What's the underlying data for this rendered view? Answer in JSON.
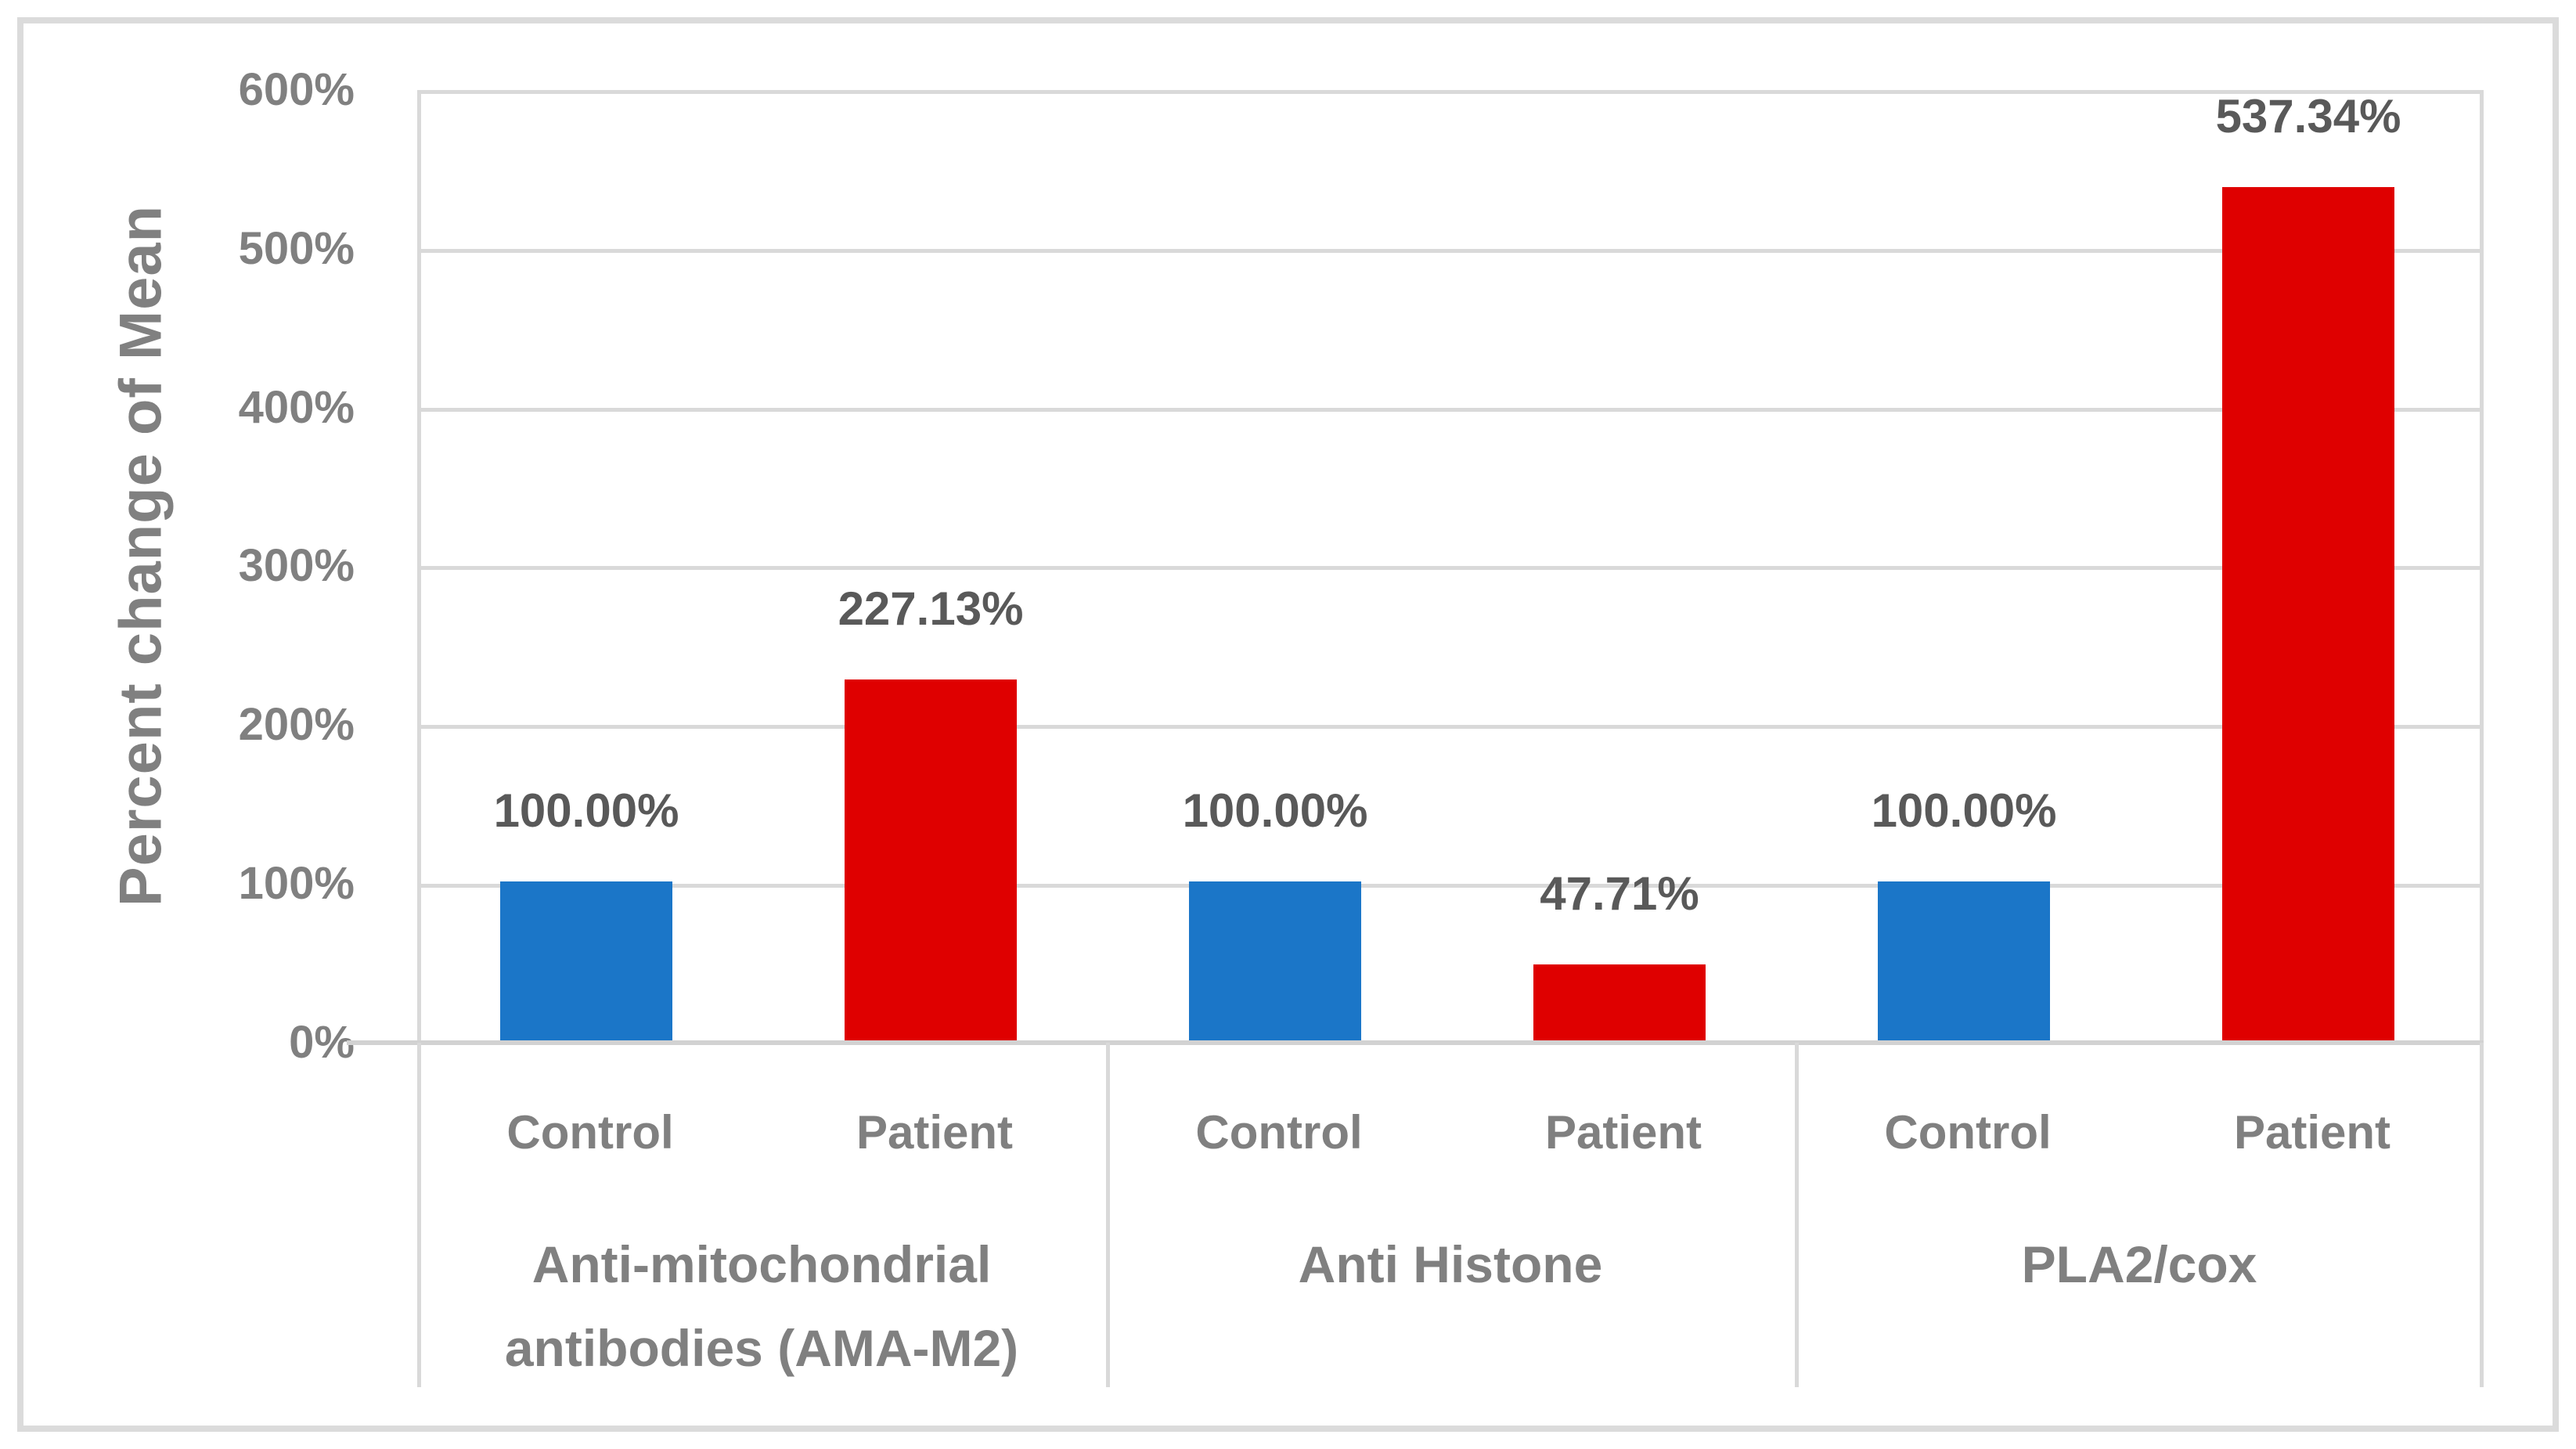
{
  "chart_data": {
    "type": "bar",
    "title": "",
    "xlabel": "",
    "ylabel": "Percent change of Mean",
    "ylim": [
      0,
      600
    ],
    "y_tick_step": 100,
    "y_tick_labels": [
      "0%",
      "100%",
      "200%",
      "300%",
      "400%",
      "500%",
      "600%"
    ],
    "grid": true,
    "legend_position": "none",
    "colors": {
      "control_blue": "#1B76C8",
      "patient_red": "#DF0000",
      "gridline_gray": "#D9D9D9",
      "axis_text_gray": "#808080",
      "data_label_gray": "#595959"
    },
    "groups": [
      {
        "group": "Anti-mitochondrial antibodies (AMA-M2)",
        "group_label_lines": [
          "Anti-mitochondrial",
          "antibodies (AMA-M2)"
        ],
        "categories": [
          "Control",
          "Patient"
        ],
        "values": [
          100.0,
          227.13
        ],
        "value_labels": [
          "100.00%",
          "227.13%"
        ]
      },
      {
        "group": "Anti Histone",
        "group_label_lines": [
          "Anti Histone"
        ],
        "categories": [
          "Control",
          "Patient"
        ],
        "values": [
          100.0,
          47.71
        ],
        "value_labels": [
          "100.00%",
          "47.71%"
        ]
      },
      {
        "group": "PLA2/cox",
        "group_label_lines": [
          "PLA2/cox"
        ],
        "categories": [
          "Control",
          "Patient"
        ],
        "values": [
          100.0,
          537.34
        ],
        "value_labels": [
          "100.00%",
          "537.34%"
        ]
      }
    ],
    "bars": [
      {
        "group": "Anti-mitochondrial antibodies (AMA-M2)",
        "category": "Control",
        "value": 100.0,
        "value_label": "100.00%",
        "color_key": "control_blue"
      },
      {
        "group": "Anti-mitochondrial antibodies (AMA-M2)",
        "category": "Patient",
        "value": 227.13,
        "value_label": "227.13%",
        "color_key": "patient_red"
      },
      {
        "group": "Anti Histone",
        "category": "Control",
        "value": 100.0,
        "value_label": "100.00%",
        "color_key": "control_blue"
      },
      {
        "group": "Anti Histone",
        "category": "Patient",
        "value": 47.71,
        "value_label": "47.71%",
        "color_key": "patient_red"
      },
      {
        "group": "PLA2/cox",
        "category": "Control",
        "value": 100.0,
        "value_label": "100.00%",
        "color_key": "control_blue"
      },
      {
        "group": "PLA2/cox",
        "category": "Patient",
        "value": 537.34,
        "value_label": "537.34%",
        "color_key": "patient_red"
      }
    ]
  }
}
